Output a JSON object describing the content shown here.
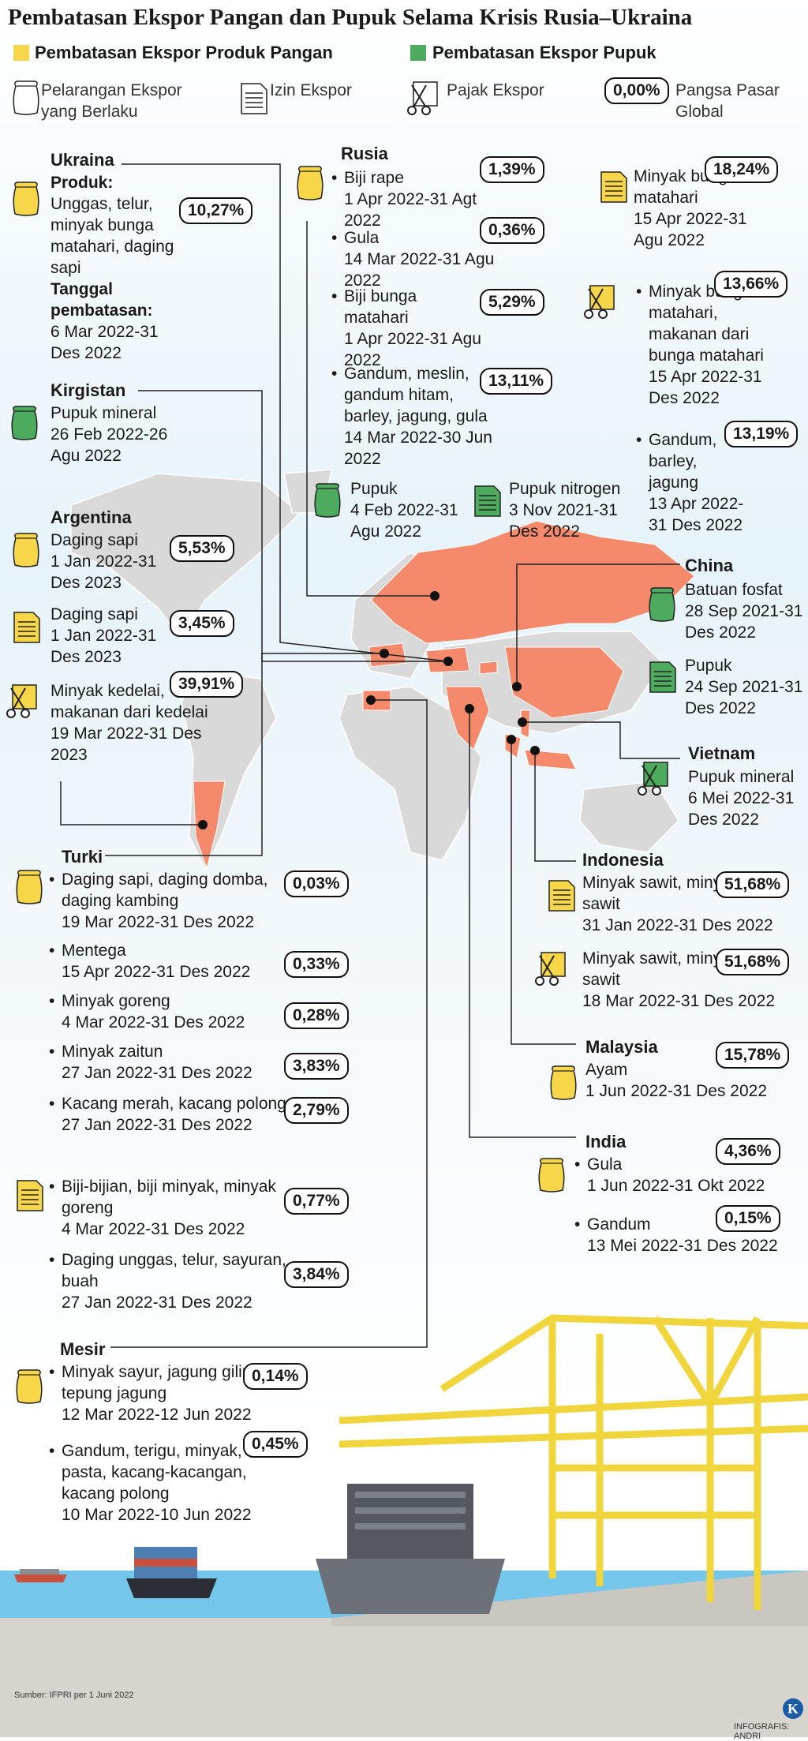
{
  "header": {
    "title": "Pembatasan Ekspor Pangan dan Pupuk Selama Krisis Rusia–Ukraina"
  },
  "legend": {
    "food": "Pembatasan Ekspor Produk Pangan",
    "fertilizer": "Pembatasan Ekspor Pupuk",
    "ban": "Pelarangan Ekspor yang Berlaku",
    "license": "Izin Ekspor",
    "tax": "Pajak Ekspor",
    "share_sample": "0,00%",
    "share": "Pangsa Pasar Global"
  },
  "countries": [
    {
      "name": "Ukraina",
      "items": [
        {
          "product_label": "Produk:",
          "product": "Unggas, telur, minyak bunga matahari, daging sapi",
          "date_label": "Tanggal pembatasan:",
          "date": "6 Mar 2022-31 Des 2022",
          "share": "10,27%"
        }
      ]
    },
    {
      "name": "Rusia",
      "items": [
        {
          "product": "Biji rape",
          "date": "1 Apr 2022-31 Agt 2022",
          "share": "1,39%"
        },
        {
          "product": "Gula",
          "date": "14 Mar 2022-31 Agu 2022",
          "share": "0,36%"
        },
        {
          "product": "Biji bunga matahari",
          "date": "1 Apr 2022-31 Agu 2022",
          "share": "5,29%"
        },
        {
          "product": "Gandum, meslin, gandum hitam, barley, jagung, gula",
          "date": "14 Mar 2022-30 Jun 2022",
          "share": "13,11%"
        },
        {
          "product": "Minyak bunga matahari",
          "date": "15 Apr 2022-31 Agu 2022",
          "share": "18,24%"
        },
        {
          "product": "Minyak bunga matahari, makanan dari bunga matahari",
          "date": "15 Apr 2022-31 Des 2022",
          "share": "13,66%"
        },
        {
          "product": "Gandum, barley, jagung",
          "date": "13 Apr 2022-31 Des 2022",
          "share": "13,19%"
        },
        {
          "product": "Pupuk",
          "date": "4 Feb 2022-31 Agu 2022"
        },
        {
          "product": "Pupuk nitrogen",
          "date": "3 Nov 2021-31 Des 2022"
        }
      ]
    },
    {
      "name": "Kirgistan",
      "items": [
        {
          "product": "Pupuk mineral",
          "date": "26 Feb 2022-26 Agu 2022"
        }
      ]
    },
    {
      "name": "Argentina",
      "items": [
        {
          "product": "Daging sapi",
          "date": "1 Jan 2022-31 Des 2023",
          "share": "5,53%"
        },
        {
          "product": "Daging sapi",
          "date": "1 Jan 2022-31 Des 2023",
          "share": "3,45%"
        },
        {
          "product": "Minyak kedelai, makanan dari kedelai",
          "date": "19 Mar 2022-31 Des 2023",
          "share": "39,91%"
        }
      ]
    },
    {
      "name": "China",
      "items": [
        {
          "product": "Batuan fosfat",
          "date": "28 Sep 2021-31 Des 2022"
        },
        {
          "product": "Pupuk",
          "date": "24 Sep 2021-31 Des 2022"
        }
      ]
    },
    {
      "name": "Vietnam",
      "items": [
        {
          "product": "Pupuk mineral",
          "date": "6 Mei 2022-31 Des 2022"
        }
      ]
    },
    {
      "name": "Turki",
      "items": [
        {
          "product": "Daging sapi, daging domba, daging kambing",
          "date": "19 Mar 2022-31 Des 2022",
          "share": "0,03%"
        },
        {
          "product": "Mentega",
          "date": "15 Apr 2022-31 Des 2022",
          "share": "0,33%"
        },
        {
          "product": "Minyak goreng",
          "date": "4 Mar 2022-31 Des 2022",
          "share": "0,28%"
        },
        {
          "product": "Minyak zaitun",
          "date": "27 Jan 2022-31 Des 2022",
          "share": "3,83%"
        },
        {
          "product": "Kacang merah, kacang polong",
          "date": "27 Jan 2022-31 Des 2022",
          "share": "2,79%"
        },
        {
          "product": "Biji-bijian, biji minyak, minyak goreng",
          "date": "4 Mar 2022-31 Des 2022",
          "share": "0,77%"
        },
        {
          "product": "Daging unggas, telur, sayuran, buah",
          "date": "27 Jan 2022-31 Des 2022",
          "share": "3,84%"
        }
      ]
    },
    {
      "name": "Indonesia",
      "items": [
        {
          "product": "Minyak sawit, minyak inti sawit",
          "date": "31 Jan 2022-31 Des 2022",
          "share": "51,68%"
        },
        {
          "product": "Minyak sawit, minyak inti sawit",
          "date": "18 Mar 2022-31 Des 2022",
          "share": "51,68%"
        }
      ]
    },
    {
      "name": "Malaysia",
      "items": [
        {
          "product": "Ayam",
          "date": "1 Jun 2022-31 Des 2022",
          "share": "15,78%"
        }
      ]
    },
    {
      "name": "India",
      "items": [
        {
          "product": "Gula",
          "date": "1 Jun 2022-31 Okt 2022",
          "share": "4,36%"
        },
        {
          "product": "Gandum",
          "date": "13 Mei 2022-31 Des 2022",
          "share": "0,15%"
        }
      ]
    },
    {
      "name": "Mesir",
      "items": [
        {
          "product": "Minyak sayur, jagung giling, tepung jagung",
          "date": "12 Mar 2022-12 Jun 2022",
          "share": "0,14%"
        },
        {
          "product": "Gandum, terigu, minyak, pasta, kacang-kacangan, kacang polong",
          "date": "10 Mar 2022-10 Jun 2022",
          "share": "0,45%"
        }
      ]
    }
  ],
  "footer": {
    "source": "Sumber: IFPRI per 1 Juni 2022",
    "credit": "INFOGRAFIS: ANDRI",
    "logo": "K"
  }
}
